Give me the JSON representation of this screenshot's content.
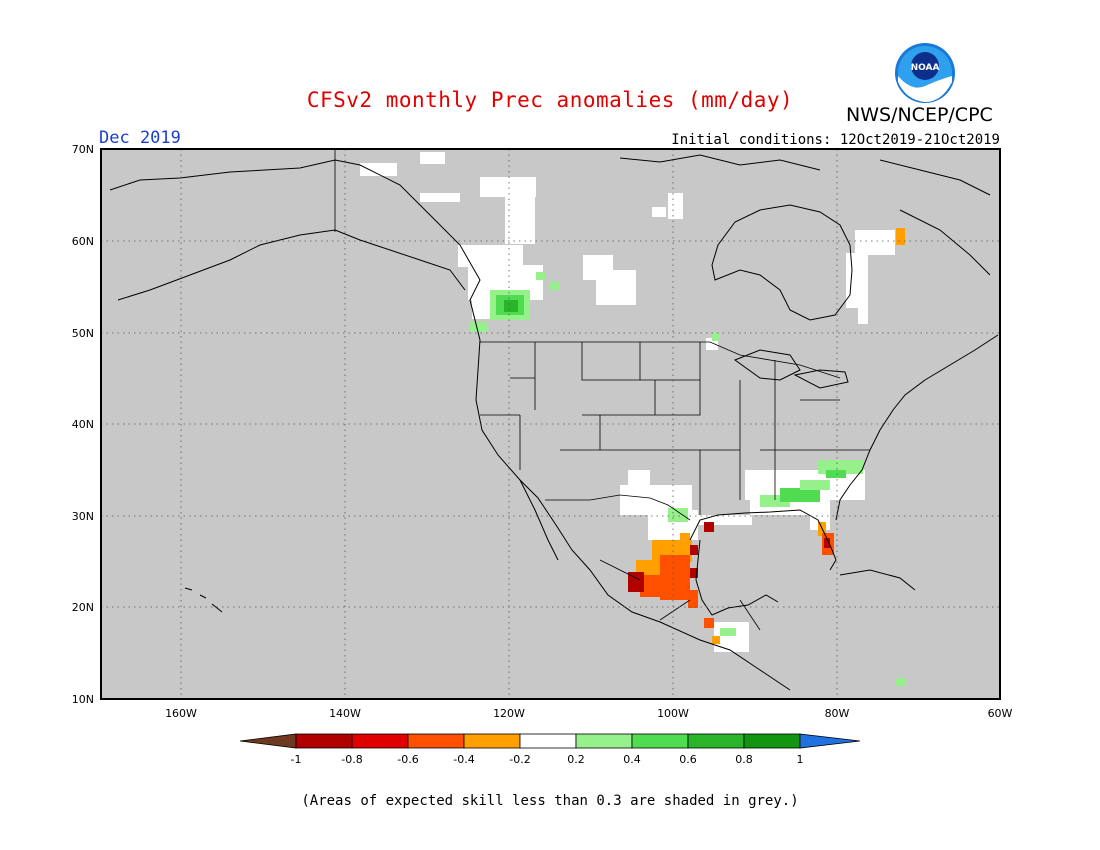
{
  "header": {
    "title": "CFSv2 monthly Prec anomalies (mm/day)",
    "agency": "NWS/NCEP/CPC",
    "logo_text": "NOAA",
    "target_month": "Dec 2019",
    "initial_conditions": "Initial conditions: 12Oct2019-21Oct2019"
  },
  "map": {
    "lat_labels": [
      "70N",
      "60N",
      "50N",
      "40N",
      "30N",
      "20N",
      "10N"
    ],
    "lon_labels": [
      "160W",
      "140W",
      "120W",
      "100W",
      "80W",
      "60W"
    ],
    "background_color": "#c8c8c8"
  },
  "legend": {
    "tick_labels": [
      "-1",
      "-0.8",
      "-0.6",
      "-0.4",
      "-0.2",
      "0.2",
      "0.4",
      "0.6",
      "0.8",
      "1"
    ],
    "colors": [
      "#703820",
      "#b00000",
      "#e00000",
      "#ff5000",
      "#ffa000",
      "#ffffff",
      "#96f08c",
      "#50dc50",
      "#2ab42a",
      "#129612",
      "#2070e0"
    ]
  },
  "footnote": "(Areas of expected skill less than 0.3 are shaded in grey.)"
}
